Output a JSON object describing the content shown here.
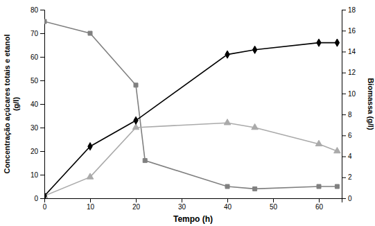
{
  "chart_data": {
    "type": "line",
    "xlabel": "Tempo (h)",
    "ylabel": "Concentração açúcares totais e etanol\n(g/l)",
    "y2label": "Biomassa (g/l)",
    "xlim": [
      0,
      65
    ],
    "ylim": [
      0,
      80
    ],
    "y2lim": [
      0,
      18
    ],
    "xticks": [
      0,
      10,
      20,
      30,
      40,
      50,
      60
    ],
    "yticks": [
      0,
      10,
      20,
      30,
      40,
      50,
      60,
      70,
      80
    ],
    "y2ticks": [
      0,
      2,
      4,
      6,
      8,
      10,
      12,
      14,
      16,
      18
    ],
    "series": [
      {
        "x": [
          0,
          10,
          20,
          22,
          40,
          46,
          60,
          64
        ],
        "values": [
          75,
          70,
          48,
          16,
          5,
          4,
          5,
          5
        ],
        "color": "#808080",
        "marker": "square"
      },
      {
        "x": [
          0,
          10,
          20,
          40,
          46,
          60,
          64
        ],
        "values": [
          1,
          9,
          30,
          32,
          30,
          23,
          20
        ],
        "color": "#aaaaaa",
        "marker": "triangle"
      },
      {
        "x": [
          0,
          10,
          20,
          40,
          46,
          60,
          64
        ],
        "values": [
          1,
          22,
          33,
          61,
          63,
          66,
          66
        ],
        "color": "#000000",
        "marker": "diamond"
      }
    ]
  }
}
